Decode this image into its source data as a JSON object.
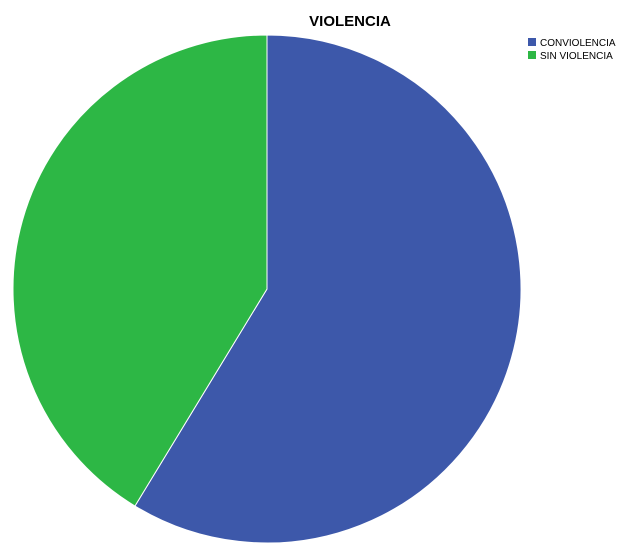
{
  "chart_data": {
    "type": "pie",
    "title": "VIOLENCIA",
    "categories": [
      "CONVIOLENCIA",
      "SIN VIOLENCIA"
    ],
    "values": [
      58.7,
      41.3
    ],
    "colors": [
      "#3d58aa",
      "#2db745"
    ],
    "legend_position": "top-right"
  }
}
